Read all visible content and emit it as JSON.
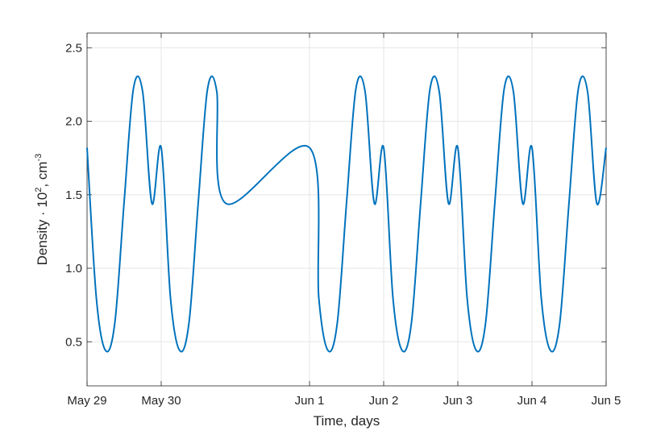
{
  "chart_data": {
    "type": "line",
    "title": "",
    "xlabel": "Time, days",
    "ylabel": {
      "prefix": "Density · 10",
      "exp1": "2",
      "middle": ", cm",
      "exp2": "-3"
    },
    "xlim": [
      "2024-05-29",
      "2024-06-05"
    ],
    "ylim": [
      0.2,
      2.6
    ],
    "x_ticks": [
      "2024-05-29",
      "2024-05-30",
      "2024-06-01",
      "2024-06-02",
      "2024-06-03",
      "2024-06-04",
      "2024-06-05"
    ],
    "x_tick_labels": [
      "May 29",
      "May 30",
      "Jun 1",
      "Jun 2",
      "Jun 3",
      "Jun 4",
      "Jun 5"
    ],
    "y_ticks": [
      0.5,
      1.0,
      1.5,
      2.0,
      2.5
    ],
    "y_tick_labels": [
      "0.5",
      "1.0",
      "1.5",
      "2.0",
      "2.5"
    ],
    "grid": true,
    "series": [
      {
        "color": "#0072BD",
        "x": [
          "2024-05-29 00:00",
          "2024-05-29 03:00",
          "2024-05-29 06:00",
          "2024-05-29 09:00",
          "2024-05-29 12:00",
          "2024-05-29 15:00",
          "2024-05-29 18:00",
          "2024-05-29 21:00",
          "2024-05-30 00:00",
          "2024-05-30 03:00",
          "2024-05-30 06:00",
          "2024-05-30 09:00",
          "2024-05-30 12:00",
          "2024-05-30 15:00",
          "2024-05-30 18:00",
          "2024-05-30 21:00",
          "2024-06-01 00:00",
          "2024-06-01 03:00",
          "2024-06-01 06:00",
          "2024-06-01 09:00",
          "2024-06-01 12:00",
          "2024-06-01 15:00",
          "2024-06-01 18:00",
          "2024-06-01 21:00",
          "2024-06-02 00:00",
          "2024-06-02 03:00",
          "2024-06-02 06:00",
          "2024-06-02 09:00",
          "2024-06-02 12:00",
          "2024-06-02 15:00",
          "2024-06-02 18:00",
          "2024-06-02 21:00",
          "2024-06-03 00:00",
          "2024-06-03 03:00",
          "2024-06-03 06:00",
          "2024-06-03 09:00",
          "2024-06-03 12:00",
          "2024-06-03 15:00",
          "2024-06-03 18:00",
          "2024-06-03 21:00",
          "2024-06-04 00:00",
          "2024-06-04 03:00",
          "2024-06-04 06:00",
          "2024-06-04 09:00",
          "2024-06-04 12:00",
          "2024-06-04 15:00",
          "2024-06-04 18:00",
          "2024-06-04 21:00",
          "2024-06-05 00:00"
        ],
        "y": [
          1.82,
          0.8,
          0.44,
          0.63,
          1.45,
          2.22,
          2.2,
          1.44,
          1.82,
          0.8,
          0.44,
          0.63,
          1.45,
          2.22,
          2.2,
          1.44,
          1.82,
          0.8,
          0.44,
          0.63,
          1.45,
          2.22,
          2.2,
          1.44,
          1.82,
          0.8,
          0.44,
          0.63,
          1.45,
          2.22,
          2.2,
          1.44,
          1.82,
          0.8,
          0.44,
          0.63,
          1.45,
          2.22,
          2.2,
          1.44,
          1.82,
          0.8,
          0.44,
          0.63,
          1.45,
          2.22,
          2.2,
          1.44,
          1.82
        ]
      }
    ]
  }
}
